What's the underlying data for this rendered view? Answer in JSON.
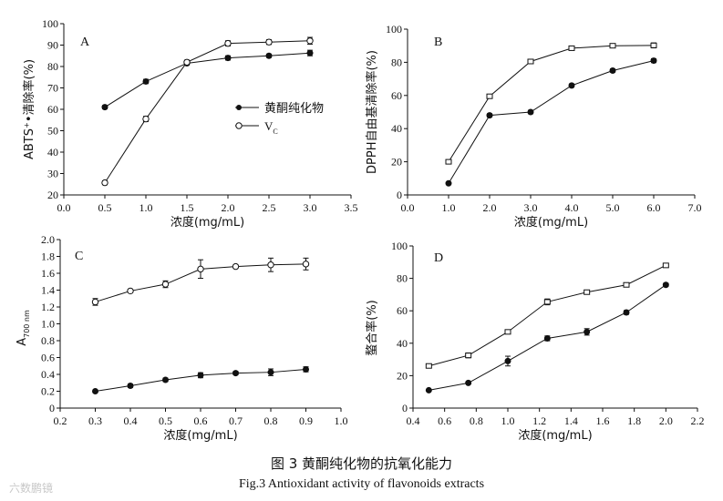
{
  "caption": {
    "cn": "图 3    黄酮纯化物的抗氧化能力",
    "en": "Fig.3  Antioxidant activity of flavonoids extracts"
  },
  "watermark": "六数鹏镜",
  "chart_data": [
    {
      "type": "line",
      "panel": "A",
      "xlabel": "浓度(mg/mL)",
      "ylabel": "ABTS⁺•清除率(%)",
      "xlim": [
        0,
        3.5
      ],
      "ylim": [
        20,
        100
      ],
      "xticks": [
        "0.0",
        "0.5",
        "1.0",
        "1.5",
        "2.0",
        "2.5",
        "3.0",
        "3.5"
      ],
      "yticks": [
        "20",
        "30",
        "40",
        "50",
        "60",
        "70",
        "80",
        "90",
        "100"
      ],
      "legend": {
        "position": "center-right",
        "entries": [
          "黄酮纯化物",
          "V"
        ],
        "vc_sub": "C"
      },
      "x": [
        0.5,
        1.0,
        1.5,
        2.0,
        2.5,
        3.0
      ],
      "series": [
        {
          "name": "黄酮纯化物",
          "marker": "filled-circle",
          "values": [
            61,
            73,
            81.5,
            84,
            85,
            86.3
          ],
          "errors": [
            0.8,
            1.0,
            0.8,
            1.0,
            0.8,
            1.3
          ]
        },
        {
          "name": "VC",
          "marker": "open-circle",
          "values": [
            25.7,
            55.5,
            82,
            90.8,
            91.4,
            92
          ],
          "errors": [
            0.9,
            1.2,
            1.0,
            1.2,
            1.1,
            1.6
          ]
        }
      ]
    },
    {
      "type": "line",
      "panel": "B",
      "xlabel": "浓度(mg/mL)",
      "ylabel": "DPPH自由基清除率(%)",
      "xlim": [
        0,
        7
      ],
      "ylim": [
        0,
        100
      ],
      "xticks": [
        "0.0",
        "1.0",
        "2.0",
        "3.0",
        "4.0",
        "5.0",
        "6.0",
        "7.0"
      ],
      "yticks": [
        "0",
        "20",
        "40",
        "60",
        "80",
        "100"
      ],
      "x": [
        1,
        2,
        3,
        4,
        5,
        6
      ],
      "series": [
        {
          "name": "黄酮纯化物",
          "marker": "filled-circle",
          "values": [
            7,
            48,
            50,
            66,
            75,
            81
          ],
          "errors": [
            0.6,
            1.0,
            1.0,
            1.0,
            1.0,
            1.2
          ]
        },
        {
          "name": "VC",
          "marker": "open-square",
          "values": [
            20,
            59.5,
            80.5,
            88.5,
            90,
            90.2
          ],
          "errors": [
            0.8,
            1.0,
            1.0,
            1.0,
            1.0,
            1.5
          ]
        }
      ]
    },
    {
      "type": "line",
      "panel": "C",
      "xlabel": "浓度(mg/mL)",
      "ylabel": "A",
      "ylabel_sub": "700 nm",
      "xlim": [
        0.2,
        1.0
      ],
      "ylim": [
        0,
        2.0
      ],
      "xticks": [
        "0.2",
        "0.3",
        "0.4",
        "0.5",
        "0.6",
        "0.7",
        "0.8",
        "0.9",
        "1.0"
      ],
      "yticks": [
        "0",
        "0.2",
        "0.4",
        "0.6",
        "0.8",
        "1.0",
        "1.2",
        "1.4",
        "1.6",
        "1.8",
        "2.0"
      ],
      "x": [
        0.3,
        0.4,
        0.5,
        0.6,
        0.7,
        0.8,
        0.9
      ],
      "series": [
        {
          "name": "黄酮纯化物",
          "marker": "filled-circle",
          "values": [
            0.2,
            0.265,
            0.335,
            0.39,
            0.415,
            0.425,
            0.46
          ],
          "errors": [
            0.01,
            0.02,
            0.02,
            0.03,
            0.02,
            0.04,
            0.03
          ]
        },
        {
          "name": "VC",
          "marker": "open-circle",
          "values": [
            1.26,
            1.39,
            1.47,
            1.65,
            1.68,
            1.7,
            1.71
          ],
          "errors": [
            0.04,
            0.02,
            0.04,
            0.11,
            0.02,
            0.08,
            0.07
          ]
        }
      ]
    },
    {
      "type": "line",
      "panel": "D",
      "xlabel": "浓度(mg/mL)",
      "ylabel": "螯合率(%)",
      "xlim": [
        0.4,
        2.2
      ],
      "ylim": [
        0,
        100
      ],
      "xticks": [
        "0.4",
        "0.6",
        "0.8",
        "1.0",
        "1.2",
        "1.4",
        "1.6",
        "1.8",
        "2.0",
        "2.2"
      ],
      "yticks": [
        "0",
        "20",
        "40",
        "60",
        "80",
        "100"
      ],
      "x": [
        0.5,
        0.75,
        1.0,
        1.25,
        1.5,
        1.75,
        2.0
      ],
      "series": [
        {
          "name": "黄酮纯化物",
          "marker": "filled-circle",
          "values": [
            11,
            15.5,
            29,
            43,
            47,
            59,
            76
          ],
          "errors": [
            0.5,
            0.6,
            3.0,
            1.5,
            2.0,
            1.2,
            1.0
          ]
        },
        {
          "name": "VC",
          "marker": "open-square",
          "values": [
            26,
            32.5,
            47,
            65.5,
            71.5,
            76,
            88
          ],
          "errors": [
            0.8,
            1.5,
            0.8,
            1.8,
            0.8,
            0.8,
            1.0
          ]
        }
      ]
    }
  ]
}
